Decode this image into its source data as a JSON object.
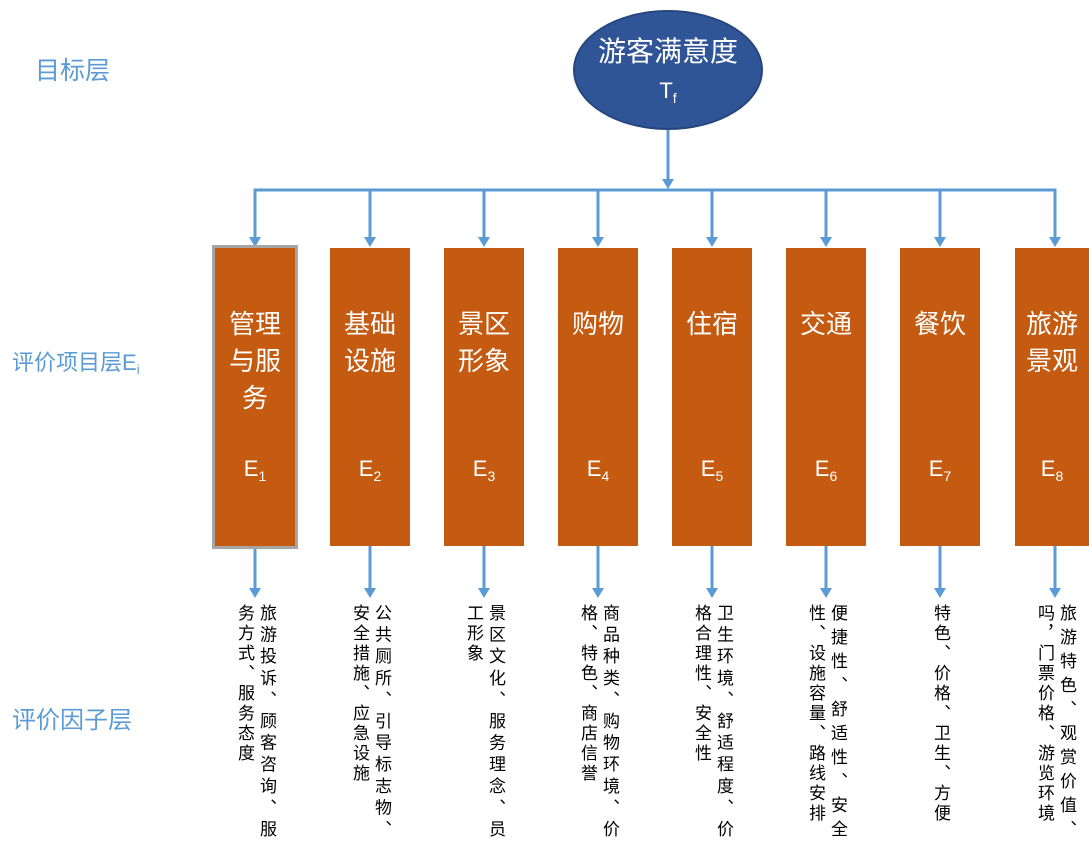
{
  "layers": {
    "target": {
      "label": "目标层"
    },
    "items": {
      "label": "评价项目层",
      "var": "E",
      "sub": "i"
    },
    "factors": {
      "label": "评价因子层"
    }
  },
  "target_node": {
    "title": "游客满意度",
    "var": "T",
    "sub": "f"
  },
  "items": [
    {
      "title": "管理与服务",
      "var": "E",
      "sub": "1",
      "factor_lines": [
        "旅游投诉、顾客咨询、服",
        "务方式、服务态度"
      ]
    },
    {
      "title": "基础设施",
      "var": "E",
      "sub": "2",
      "factor_lines": [
        "公共厕所、引导标志物、",
        "安全措施、应急设施"
      ]
    },
    {
      "title": "景区形象",
      "var": "E",
      "sub": "3",
      "factor_lines": [
        "景区文化、服务理念、员",
        "工形象"
      ]
    },
    {
      "title": "购物",
      "var": "E",
      "sub": "4",
      "factor_lines": [
        "商品种类、购物环境、价",
        "格、特色、商店信誉"
      ]
    },
    {
      "title": "住宿",
      "var": "E",
      "sub": "5",
      "factor_lines": [
        "卫生环境、舒适程度、价",
        "格合理性、安全性"
      ]
    },
    {
      "title": "交通",
      "var": "E",
      "sub": "6",
      "factor_lines": [
        "便捷性、舒适性、安全",
        "性、设施容量、路线安排"
      ]
    },
    {
      "title": "餐饮",
      "var": "E",
      "sub": "7",
      "factor_lines": [
        "特色、价格、卫生、方便"
      ]
    },
    {
      "title": "旅游景观",
      "var": "E",
      "sub": "8",
      "factor_lines": [
        "旅游特色、观赏价值、",
        "吗，门票价格、游览环境"
      ]
    }
  ],
  "colors": {
    "layer_label": "#5B9BD5",
    "connector": "#5B9BD5",
    "target_fill": "#2F5597",
    "item_fill": "#C55A11",
    "item_text": "#FFFFFF",
    "item_outline": "#A6A6A6",
    "factor_text": "#000000"
  }
}
